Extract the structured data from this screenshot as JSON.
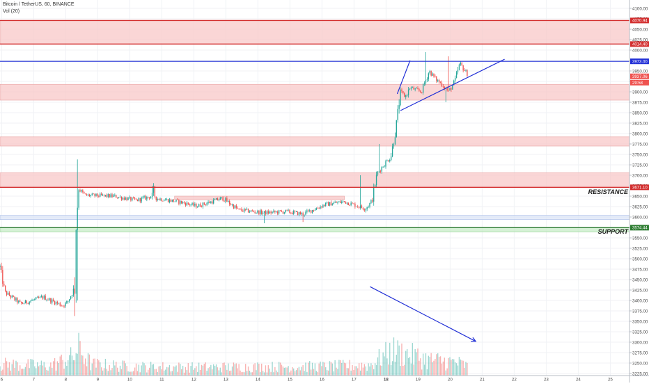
{
  "header": {
    "symbol_line": "Bitcoin / TetherUS, 60, BINANCE",
    "volume_line": "Vol (20)"
  },
  "colors": {
    "up": "#26a69a",
    "down": "#ef5350",
    "red_zone": "#f8c8c8",
    "blue_zone": "#dce6f7",
    "green_zone": "#c8ecc8",
    "trend_blue": "#2230d6",
    "level_red": "#d32f2f",
    "level_blue": "#2230d6",
    "level_green": "#2e7d32"
  },
  "chart_data": {
    "type": "candlestick",
    "title": "",
    "xlabel": "",
    "ylabel": "",
    "x_ticks": [
      "6",
      "7",
      "8",
      "9",
      "10",
      "11",
      "12",
      "13",
      "14",
      "15",
      "16",
      "17",
      "18",
      "19",
      "20",
      "21",
      "22",
      "23",
      "24",
      "25"
    ],
    "y_ticks": [
      3225,
      3250,
      3275,
      3300,
      3325,
      3350,
      3375,
      3400,
      3425,
      3450,
      3475,
      3500,
      3525,
      3550,
      3575,
      3600,
      3625,
      3650,
      3675,
      3700,
      3725,
      3750,
      3775,
      3800,
      3825,
      3850,
      3875,
      3900,
      3925,
      3950,
      3975,
      4000,
      4025,
      4050,
      4075,
      4100
    ],
    "y_tick_labels": [
      "3225.00",
      "3250.00",
      "3275.00",
      "3300.00",
      "3325.00",
      "3350.00",
      "3375.00",
      "3400.00",
      "3425.00",
      "3450.00",
      "3475.00",
      "3500.00",
      "3525.00",
      "3550.00",
      "3575.00",
      "3600.00",
      "3625.00",
      "3650.00",
      "3675.00",
      "3700.00",
      "3725.00",
      "3750.00",
      "3775.00",
      "3800.00",
      "3825.00",
      "3850.00",
      "3875.00",
      "3900.00",
      "3925.00",
      "3950.00",
      "3975.00",
      "4000.00",
      "4025.00",
      "4050.00",
      "4075.00",
      "4100.00"
    ],
    "ylim": [
      3220,
      4110
    ],
    "xlim": [
      5.95,
      25.6
    ],
    "grid": true,
    "price_tags": [
      {
        "value": 4070.94,
        "label": "4070.94",
        "color": "#d32f2f"
      },
      {
        "value": 4014.4,
        "label": "4014.40",
        "color": "#d32f2f"
      },
      {
        "value": 3973.0,
        "label": "3973.00",
        "color": "#2230d6"
      },
      {
        "value": 3937.06,
        "label": "3937.06",
        "color": "#ef5350"
      },
      {
        "value": 3922.0,
        "label": "29:58",
        "color": "#ef5350"
      },
      {
        "value": 3671.1,
        "label": "3671.10",
        "color": "#d32f2f"
      },
      {
        "value": 3574.44,
        "label": "3574.44",
        "color": "#2e7d32"
      }
    ],
    "zones": [
      {
        "from": 4014.4,
        "to": 4070.94,
        "kind": "red"
      },
      {
        "from": 3880,
        "to": 3918,
        "kind": "red"
      },
      {
        "from": 3770,
        "to": 3792,
        "kind": "red"
      },
      {
        "from": 3671.1,
        "to": 3706,
        "kind": "red"
      },
      {
        "from": 3594,
        "to": 3604,
        "kind": "blue"
      },
      {
        "from": 3564,
        "to": 3574.44,
        "kind": "green"
      }
    ],
    "levels": [
      {
        "value": 4070.94,
        "kind": "red"
      },
      {
        "value": 4014.4,
        "kind": "red"
      },
      {
        "value": 3973.0,
        "kind": "blue"
      },
      {
        "value": 3671.1,
        "kind": "red"
      },
      {
        "value": 3574.44,
        "kind": "green"
      }
    ],
    "range_box": {
      "x_from": 11.4,
      "x_to": 16.7,
      "y_from": 3641,
      "y_to": 3650
    },
    "annotations": [
      {
        "text": "RESISTANCE",
        "value": 3661
      },
      {
        "text": "SUPPORT",
        "value": 3566
      }
    ],
    "trend_lines": [
      {
        "x1": 18.45,
        "y1": 3855,
        "x2": 21.7,
        "y2": 3978
      },
      {
        "x1": 18.35,
        "y1": 3895,
        "x2": 18.75,
        "y2": 3975
      },
      {
        "x1": 17.5,
        "y1": 3433,
        "x2": 20.8,
        "y2": 3302
      }
    ],
    "anchors": [
      {
        "x": 5.95,
        "close": 3480
      },
      {
        "x": 6.1,
        "close": 3420
      },
      {
        "x": 6.6,
        "close": 3392
      },
      {
        "x": 7.3,
        "close": 3408
      },
      {
        "x": 7.9,
        "close": 3388
      },
      {
        "x": 8.05,
        "close": 3395
      },
      {
        "x": 8.28,
        "close": 3430
      },
      {
        "x": 8.32,
        "close": 3570
      },
      {
        "x": 8.4,
        "close": 3668
      },
      {
        "x": 8.6,
        "close": 3652
      },
      {
        "x": 9.5,
        "close": 3650
      },
      {
        "x": 10.2,
        "close": 3640
      },
      {
        "x": 10.7,
        "close": 3650
      },
      {
        "x": 10.72,
        "close": 3672
      },
      {
        "x": 10.8,
        "close": 3645
      },
      {
        "x": 11.5,
        "close": 3637
      },
      {
        "x": 12.1,
        "close": 3626
      },
      {
        "x": 12.9,
        "close": 3645
      },
      {
        "x": 13.4,
        "close": 3617
      },
      {
        "x": 14.2,
        "close": 3610
      },
      {
        "x": 14.9,
        "close": 3613
      },
      {
        "x": 15.4,
        "close": 3607
      },
      {
        "x": 16.1,
        "close": 3630
      },
      {
        "x": 16.7,
        "close": 3637
      },
      {
        "x": 17.35,
        "close": 3620
      },
      {
        "x": 17.55,
        "close": 3636
      },
      {
        "x": 17.72,
        "close": 3705
      },
      {
        "x": 18.15,
        "close": 3745
      },
      {
        "x": 18.3,
        "close": 3808
      },
      {
        "x": 18.45,
        "close": 3900
      },
      {
        "x": 18.6,
        "close": 3888
      },
      {
        "x": 18.75,
        "close": 3910
      },
      {
        "x": 19.1,
        "close": 3900
      },
      {
        "x": 19.35,
        "close": 3950
      },
      {
        "x": 19.55,
        "close": 3930
      },
      {
        "x": 19.75,
        "close": 3918
      },
      {
        "x": 19.95,
        "close": 3900
      },
      {
        "x": 20.15,
        "close": 3925
      },
      {
        "x": 20.3,
        "close": 3968
      },
      {
        "x": 20.45,
        "close": 3952
      },
      {
        "x": 20.55,
        "close": 3937.06
      }
    ],
    "volume_profile": [
      {
        "x": 5.95,
        "v": 0.3
      },
      {
        "x": 7.5,
        "v": 0.26
      },
      {
        "x": 8.25,
        "v": 0.5
      },
      {
        "x": 8.4,
        "v": 0.72
      },
      {
        "x": 8.8,
        "v": 0.3
      },
      {
        "x": 10.0,
        "v": 0.24
      },
      {
        "x": 12.0,
        "v": 0.22
      },
      {
        "x": 14.0,
        "v": 0.23
      },
      {
        "x": 16.0,
        "v": 0.24
      },
      {
        "x": 17.5,
        "v": 0.28
      },
      {
        "x": 17.8,
        "v": 0.45
      },
      {
        "x": 18.2,
        "v": 0.65
      },
      {
        "x": 18.5,
        "v": 0.6
      },
      {
        "x": 19.3,
        "v": 0.42
      },
      {
        "x": 20.2,
        "v": 0.35
      },
      {
        "x": 20.55,
        "v": 0.25
      }
    ]
  }
}
